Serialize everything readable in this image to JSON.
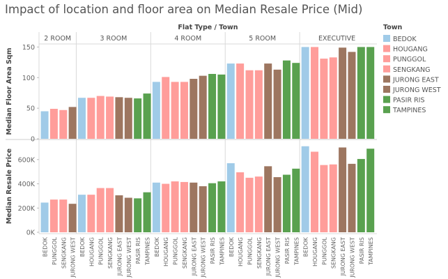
{
  "title": "Impact of location and floor area on Median Resale Price (Mid)",
  "colors": {
    "BEDOK": "#a0cbe8",
    "HOUGANG": "#ff9d9a",
    "PUNGGOL": "#ff9d9a",
    "SENGKANG": "#ff9d9a",
    "JURONG EAST": "#9d7660",
    "JURONG WEST": "#9d7660",
    "PASIR RIS": "#59a14f",
    "TAMPINES": "#59a14f"
  },
  "chart_data": {
    "type": "bar",
    "title": "Impact of location and floor area on Median Resale Price (Mid)",
    "column_header": "Flat Type / Town",
    "legend": {
      "title": "Town",
      "position": "right",
      "items": [
        "BEDOK",
        "HOUGANG",
        "PUNGGOL",
        "SENGKANG",
        "JURONG EAST",
        "JURONG WEST",
        "PASIR RIS",
        "TAMPINES"
      ]
    },
    "panels": [
      {
        "ylabel": "Median Floor Area Sqm",
        "ylim": [
          0,
          155
        ],
        "ticks": [
          0,
          50,
          100,
          150
        ],
        "tick_labels": [
          "0",
          "50",
          "100",
          "150"
        ]
      },
      {
        "ylabel": "Median Resale Price",
        "ylim": [
          0,
          760000
        ],
        "ticks": [
          0,
          200000,
          400000,
          600000
        ],
        "tick_labels": [
          "0K",
          "200K",
          "400K",
          "600K"
        ]
      }
    ],
    "groups": [
      {
        "name": "2 ROOM",
        "towns": [
          "BEDOK",
          "PUNGGOL",
          "SENGKANG",
          "JURONG WEST"
        ],
        "floor_area": [
          45,
          49,
          47,
          52
        ],
        "price": [
          245000,
          270000,
          270000,
          235000
        ]
      },
      {
        "name": "3 ROOM",
        "towns": [
          "BEDOK",
          "HOUGANG",
          "PUNGGOL",
          "SENGKANG",
          "JURONG EAST",
          "JURONG WEST",
          "PASIR RIS",
          "TAMPINES"
        ],
        "floor_area": [
          67,
          67,
          70,
          69,
          68,
          67,
          66,
          74
        ],
        "price": [
          310000,
          310000,
          365000,
          365000,
          305000,
          285000,
          280000,
          330000
        ]
      },
      {
        "name": "4 ROOM",
        "towns": [
          "BEDOK",
          "HOUGANG",
          "PUNGGOL",
          "SENGKANG",
          "JURONG EAST",
          "JURONG WEST",
          "PASIR RIS",
          "TAMPINES"
        ],
        "floor_area": [
          93,
          101,
          93,
          93,
          98,
          103,
          106,
          105
        ],
        "price": [
          410000,
          400000,
          420000,
          415000,
          410000,
          380000,
          405000,
          420000
        ]
      },
      {
        "name": "5 ROOM",
        "towns": [
          "BEDOK",
          "HOUGANG",
          "PUNGGOL",
          "SENGKANG",
          "JURONG EAST",
          "JURONG WEST",
          "PASIR RIS",
          "TAMPINES"
        ],
        "floor_area": [
          123,
          123,
          112,
          112,
          123,
          113,
          128,
          124
        ],
        "price": [
          570000,
          495000,
          450000,
          460000,
          545000,
          455000,
          475000,
          525000
        ]
      },
      {
        "name": "EXECUTIVE",
        "towns": [
          "BEDOK",
          "HOUGANG",
          "PUNGGOL",
          "SENGKANG",
          "JURONG EAST",
          "JURONG WEST",
          "PASIR RIS",
          "TAMPINES"
        ],
        "floor_area": [
          150,
          150,
          131,
          133,
          149,
          142,
          150,
          150
        ],
        "price": [
          710000,
          665000,
          555000,
          560000,
          700000,
          565000,
          605000,
          690000
        ]
      }
    ]
  }
}
